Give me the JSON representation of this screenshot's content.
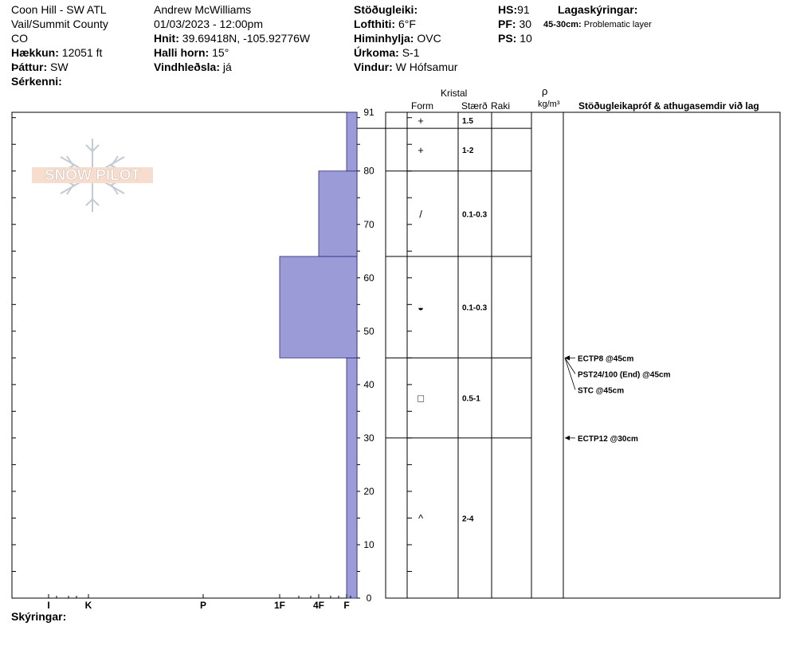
{
  "header": {
    "location_line1": "Coon Hill - SW ATL",
    "location_line2": "Vail/Summit County",
    "location_line3": "CO",
    "elevation_label": "Hækkun:",
    "elevation_value": "12051 ft",
    "aspect_label": "Þáttur:",
    "aspect_value": "SW",
    "features_label": "Sérkenni:",
    "observer": "Andrew McWilliams",
    "datetime": "01/03/2023 - 12:00pm",
    "coords_label": "Hnit:",
    "coords_value": "39.69418N, -105.92776W",
    "slope_label": "Halli horn:",
    "slope_value": "15°",
    "wind_loading_label": "Vindhleðsla:",
    "wind_loading_value": "já",
    "stability_label": "Stöðugleiki:",
    "air_temp_label": "Lofthiti:",
    "air_temp_value": "6°F",
    "sky_label": "Himinhylja:",
    "sky_value": "OVC",
    "precip_label": "Úrkoma:",
    "precip_value": "S-1",
    "wind_label": "Vindur:",
    "wind_value": "W Hófsamur",
    "hs_label": "HS:",
    "hs_value": "91",
    "pf_label": "PF:",
    "pf_value": "30",
    "ps_label": "PS:",
    "ps_value": "10",
    "legend_title": "Lagaskýringar:",
    "legend_depth": "45-30cm:",
    "legend_text": "Problematic layer",
    "comments_label": "Skýringar:"
  },
  "logo_text": "SNOW PILOT",
  "table_headers": {
    "crystal": "Kristal",
    "form": "Form",
    "size": "Stærð",
    "moisture": "Raki",
    "density_symbol": "ρ",
    "density_unit": "kg/m³",
    "tests": "Stöðugleikapróf & athugasemdir við lag"
  },
  "colors": {
    "hardness_fill": "#9b9bd8",
    "hardness_stroke": "#2a2a80"
  },
  "chart_data": {
    "type": "bar",
    "orientation": "horizontal-profile",
    "y_axis": {
      "range": [
        0,
        91
      ],
      "ticks": [
        0,
        10,
        20,
        30,
        40,
        50,
        60,
        70,
        80,
        91
      ]
    },
    "x_axis": {
      "categories": [
        "I",
        "K",
        "P",
        "1F",
        "4F",
        "F"
      ],
      "direction": "right-to-left"
    },
    "hardness_layers": [
      {
        "from": 0,
        "to": 45,
        "hardness": "F"
      },
      {
        "from": 45,
        "to": 64,
        "hardness": "1F"
      },
      {
        "from": 64,
        "to": 80,
        "hardness": "4F"
      },
      {
        "from": 80,
        "to": 91,
        "hardness": "F"
      }
    ],
    "layers": [
      {
        "from": 88,
        "to": 91,
        "form": "+",
        "size": "1.5"
      },
      {
        "from": 80,
        "to": 88,
        "form": "+",
        "size": "1-2"
      },
      {
        "from": 64,
        "to": 80,
        "form": "/",
        "size": "0.1-0.3"
      },
      {
        "from": 45,
        "to": 64,
        "form": "◒",
        "size": "0.1-0.3"
      },
      {
        "from": 30,
        "to": 45,
        "form": "□",
        "size": "0.5-1"
      },
      {
        "from": 0,
        "to": 30,
        "form": "^",
        "size": "2-4"
      }
    ],
    "tests": [
      {
        "depth": 45,
        "text": "ECTP8 @45cm"
      },
      {
        "depth": 45,
        "text": "PST24/100 (End) @45cm"
      },
      {
        "depth": 45,
        "text": "STC @45cm"
      },
      {
        "depth": 30,
        "text": "ECTP12 @30cm"
      }
    ]
  }
}
